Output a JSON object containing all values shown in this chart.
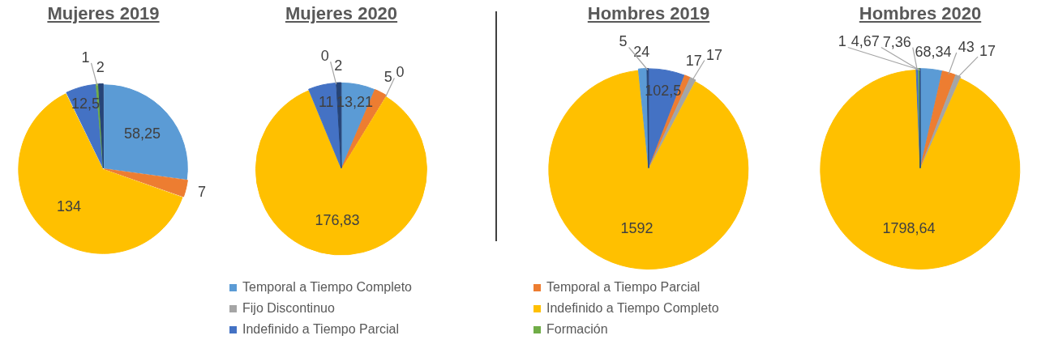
{
  "chart_data": [
    {
      "type": "pie",
      "title": "Mujeres 2019",
      "categories": [
        "Temporal a Tiempo Completo",
        "Temporal a Tiempo Parcial",
        "Fijo Discontinuo",
        "Indefinido a Tiempo Completo",
        "Indefinido a Tiempo Parcial",
        "Formación",
        null
      ],
      "values": [
        58.25,
        7,
        null,
        134,
        12.5,
        1,
        2
      ],
      "colors": [
        "#5b9bd5",
        "#ed7d31",
        "#a5a5a5",
        "#ffc000",
        "#4472c4",
        "#70ad47",
        "#264478"
      ],
      "value_labels": [
        "58,25",
        "7",
        null,
        "134",
        "12,5",
        "1",
        "2"
      ],
      "legend": "bottom"
    },
    {
      "type": "pie",
      "title": "Mujeres 2020",
      "categories": [
        null,
        null,
        null,
        null,
        null,
        null,
        null
      ],
      "values": [
        13.21,
        5,
        0,
        176.83,
        11,
        0,
        2
      ],
      "colors": [
        "#5b9bd5",
        "#ed7d31",
        "#a5a5a5",
        "#ffc000",
        "#4472c4",
        "#70ad47",
        "#264478"
      ],
      "value_labels": [
        "13,21",
        "5",
        "0",
        "176,83",
        "11",
        "0",
        "2"
      ]
    },
    {
      "type": "pie",
      "title": "Hombres 2019",
      "categories": [
        null,
        null,
        null,
        null,
        null,
        null
      ],
      "values": [
        102.5,
        17,
        17,
        1592,
        24,
        5
      ],
      "colors": [
        "#4472c4",
        "#ed7d31",
        "#a5a5a5",
        "#ffc000",
        "#5b9bd5",
        "#264478"
      ],
      "value_labels": [
        "102,5",
        "17",
        "17",
        "1592",
        "24",
        "5"
      ]
    },
    {
      "type": "pie",
      "title": "Hombres 2020",
      "categories": [
        null,
        null,
        null,
        null,
        null,
        null,
        null
      ],
      "values": [
        68.34,
        43,
        17,
        1798.64,
        7.36,
        4.67,
        1
      ],
      "colors": [
        "#5b9bd5",
        "#ed7d31",
        "#a5a5a5",
        "#ffc000",
        "#4472c4",
        "#70ad47",
        "#264478"
      ],
      "value_labels": [
        "68,34",
        "43",
        "17",
        "1798,64",
        "7,36",
        "4,67",
        "1"
      ]
    }
  ]
}
